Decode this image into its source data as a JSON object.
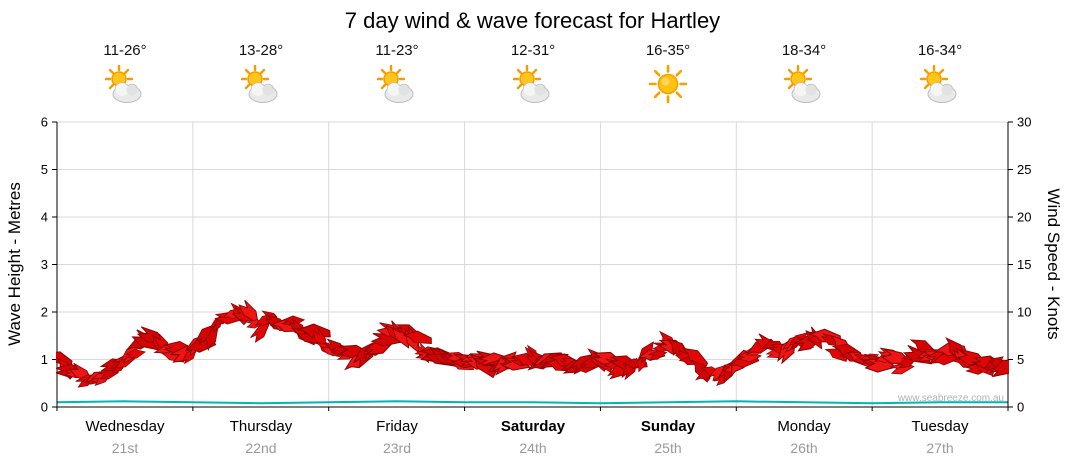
{
  "title": "7 day wind & wave forecast for Hartley",
  "watermark": "www.seabreeze.com.au",
  "left_axis": {
    "label": "Wave Height - Metres",
    "min": 0,
    "max": 6,
    "ticks": [
      0,
      1,
      2,
      3,
      4,
      5,
      6
    ]
  },
  "right_axis": {
    "label": "Wind Speed - Knots",
    "min": 0,
    "max": 30,
    "ticks": [
      0,
      5,
      10,
      15,
      20,
      25,
      30
    ]
  },
  "days": [
    {
      "name": "Wednesday",
      "date": "21st",
      "temp": "11-26°",
      "icon": "sun-cloud",
      "bold": false
    },
    {
      "name": "Thursday",
      "date": "22nd",
      "temp": "13-28°",
      "icon": "sun-cloud",
      "bold": false
    },
    {
      "name": "Friday",
      "date": "23rd",
      "temp": "11-23°",
      "icon": "sun-cloud",
      "bold": false
    },
    {
      "name": "Saturday",
      "date": "24th",
      "temp": "12-31°",
      "icon": "sun-cloud",
      "bold": true
    },
    {
      "name": "Sunday",
      "date": "25th",
      "temp": "16-35°",
      "icon": "sun",
      "bold": true
    },
    {
      "name": "Monday",
      "date": "26th",
      "temp": "18-34°",
      "icon": "sun-cloud",
      "bold": false
    },
    {
      "name": "Tuesday",
      "date": "27th",
      "temp": "16-34°",
      "icon": "sun-cloud",
      "bold": false
    }
  ],
  "chart_data": {
    "type": "line",
    "title": "7 day wind & wave forecast for Hartley",
    "x_categories": [
      "Wednesday 21st",
      "Thursday 22nd",
      "Friday 23rd",
      "Saturday 24th",
      "Sunday 25th",
      "Monday 26th",
      "Tuesday 27th"
    ],
    "samples_per_day": 8,
    "y_left": {
      "label": "Wave Height - Metres",
      "range": [
        0,
        6
      ],
      "unit": "metres"
    },
    "y_right": {
      "label": "Wind Speed - Knots",
      "range": [
        0,
        30
      ],
      "unit": "knots"
    },
    "grid": true,
    "legend": "none",
    "series": [
      {
        "name": "Wind Speed",
        "axis": "right",
        "unit": "knots",
        "style": "arrow-band",
        "color": "#dd0606",
        "values": [
          5.0,
          3.6,
          3.0,
          3.4,
          5.0,
          6.6,
          7.4,
          5.6,
          6.0,
          7.6,
          9.4,
          9.8,
          8.6,
          9.2,
          8.4,
          7.6,
          6.6,
          5.6,
          5.2,
          6.4,
          8.4,
          7.2,
          5.6,
          5.0,
          4.6,
          5.0,
          4.4,
          4.8,
          5.2,
          4.6,
          5.0,
          4.4,
          4.8,
          4.2,
          4.6,
          5.6,
          6.8,
          5.8,
          4.0,
          3.2,
          4.6,
          5.6,
          6.4,
          5.8,
          6.8,
          7.2,
          6.0,
          5.2,
          4.6,
          5.2,
          4.4,
          5.8,
          5.0,
          6.0,
          4.6,
          4.2,
          4.6
        ]
      },
      {
        "name": "Wave Height",
        "axis": "left",
        "unit": "metres",
        "style": "line",
        "color": "#00b5b5",
        "values": [
          0.1,
          0.12,
          0.1,
          0.08,
          0.1,
          0.12,
          0.1,
          0.1,
          0.08,
          0.1,
          0.12,
          0.1,
          0.08,
          0.1,
          0.1
        ]
      }
    ]
  }
}
